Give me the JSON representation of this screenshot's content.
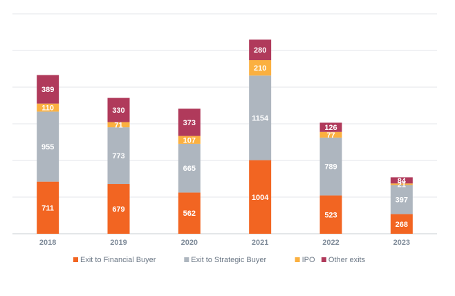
{
  "chart_data": {
    "type": "bar",
    "stacked": true,
    "categories": [
      "2018",
      "2019",
      "2020",
      "2021",
      "2022",
      "2023"
    ],
    "series": [
      {
        "name": "Exit to Financial Buyer",
        "color": "#f26522",
        "values": [
          711,
          679,
          562,
          1004,
          523,
          268
        ]
      },
      {
        "name": "Exit to Strategic Buyer",
        "color": "#aeb6bf",
        "values": [
          955,
          773,
          665,
          1154,
          789,
          397
        ]
      },
      {
        "name": "IPO",
        "color": "#fbb040",
        "values": [
          110,
          71,
          107,
          210,
          77,
          21
        ]
      },
      {
        "name": "Other exits",
        "color": "#b03a5b",
        "values": [
          389,
          330,
          373,
          280,
          126,
          84
        ]
      }
    ],
    "ylim": [
      0,
      3000
    ],
    "grid": true,
    "legend_position": "bottom"
  }
}
